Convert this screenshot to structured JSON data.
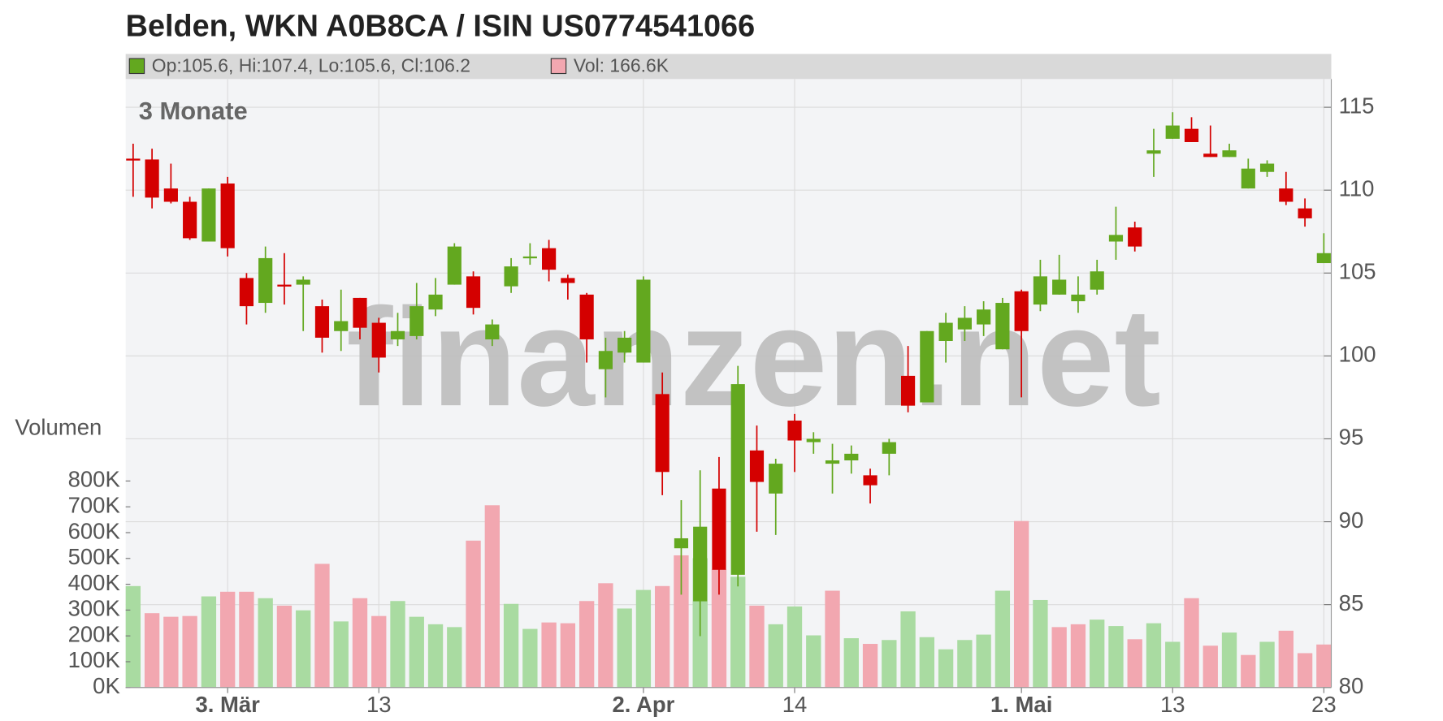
{
  "chart_data": [
    {
      "type": "candlestick",
      "title": "Belden, WKN A0B8CA / ISIN US0774541066",
      "legend": "Op:105.6, Hi:107.4, Lo:105.6, Cl:106.2",
      "period": "3 Monate",
      "watermark": "finanzen.net",
      "categories": [
        null,
        null,
        null,
        null,
        null,
        "3. Mär",
        null,
        null,
        null,
        null,
        null,
        null,
        null,
        "13",
        null,
        null,
        null,
        null,
        null,
        null,
        null,
        null,
        null,
        null,
        null,
        null,
        null,
        "2. Apr",
        null,
        null,
        null,
        null,
        null,
        null,
        null,
        "14",
        null,
        null,
        null,
        null,
        null,
        null,
        null,
        null,
        null,
        null,
        null,
        "1. Mai",
        null,
        null,
        null,
        null,
        null,
        null,
        null,
        "13",
        null,
        null,
        null,
        null,
        null,
        null,
        null,
        "23"
      ],
      "open": [
        111.9,
        111.85,
        110.1,
        109.3,
        106.9,
        110.4,
        104.7,
        103.2,
        104.3,
        104.3,
        103.0,
        101.5,
        103.5,
        102.0,
        101.0,
        101.2,
        102.8,
        104.3,
        104.8,
        101.0,
        104.2,
        105.9,
        106.5,
        104.7,
        103.7,
        99.2,
        100.2,
        99.6,
        97.7,
        88.4,
        85.2,
        92.0,
        86.8,
        94.3,
        91.7,
        96.1,
        94.8,
        93.5,
        93.7,
        92.8,
        94.1,
        98.8,
        97.2,
        100.9,
        101.6,
        101.9,
        100.4,
        103.9,
        103.1,
        103.7,
        103.3,
        104.0,
        106.9,
        107.75,
        112.2,
        113.1,
        113.7,
        112.2,
        112.0,
        110.1,
        111.1,
        110.1,
        108.9,
        105.6
      ],
      "high": [
        112.8,
        112.5,
        111.6,
        109.6,
        110.1,
        110.8,
        105.0,
        106.6,
        106.2,
        104.8,
        103.4,
        104.0,
        103.5,
        102.3,
        102.6,
        104.4,
        104.7,
        106.8,
        105.1,
        102.2,
        105.9,
        106.8,
        107.0,
        104.9,
        103.8,
        101.1,
        101.5,
        104.8,
        99.0,
        91.3,
        93.1,
        93.9,
        99.4,
        95.8,
        93.8,
        96.5,
        95.4,
        94.7,
        94.6,
        93.2,
        95.0,
        100.6,
        101.5,
        102.6,
        103.0,
        103.3,
        103.5,
        104.0,
        105.8,
        106.1,
        104.8,
        105.8,
        109.0,
        108.1,
        113.7,
        114.7,
        114.4,
        113.9,
        112.8,
        111.9,
        111.8,
        111.1,
        109.5,
        107.4
      ],
      "low": [
        109.6,
        108.9,
        109.2,
        107.0,
        106.9,
        106.0,
        101.9,
        102.6,
        103.1,
        101.5,
        100.2,
        100.3,
        101.0,
        99.0,
        100.6,
        101.0,
        102.4,
        104.3,
        102.5,
        100.6,
        103.8,
        105.5,
        104.5,
        103.4,
        99.6,
        97.5,
        99.6,
        99.6,
        91.6,
        85.6,
        83.1,
        85.6,
        86.1,
        89.4,
        89.2,
        93.0,
        94.1,
        91.7,
        92.9,
        91.1,
        92.8,
        96.6,
        97.2,
        99.6,
        100.9,
        101.2,
        100.4,
        97.5,
        102.7,
        103.7,
        102.6,
        103.7,
        105.8,
        106.3,
        110.8,
        113.1,
        112.9,
        112.0,
        112.0,
        110.1,
        110.8,
        109.1,
        107.8,
        105.6
      ],
      "close": [
        111.8,
        109.55,
        109.3,
        107.1,
        110.1,
        106.5,
        103.0,
        105.9,
        104.2,
        104.6,
        101.1,
        102.1,
        101.7,
        99.9,
        101.5,
        103.0,
        103.7,
        106.6,
        102.9,
        101.9,
        105.4,
        106.0,
        105.2,
        104.4,
        101.0,
        100.3,
        101.1,
        104.6,
        93.0,
        89.0,
        89.7,
        87.1,
        98.3,
        92.4,
        93.5,
        94.9,
        95.0,
        93.7,
        94.1,
        92.2,
        94.8,
        97.0,
        101.5,
        102.0,
        102.3,
        102.8,
        103.2,
        101.5,
        104.8,
        104.6,
        103.7,
        105.1,
        107.3,
        106.6,
        112.4,
        113.9,
        112.9,
        112.0,
        112.4,
        111.3,
        111.6,
        109.3,
        108.3,
        106.2
      ],
      "up_color": "#63a81f",
      "down_color": "#d40000",
      "ylim": [
        80,
        116.7
      ],
      "yticks": [
        80,
        85,
        90,
        95,
        100,
        105,
        110,
        115
      ],
      "grid": true
    },
    {
      "type": "bar",
      "ylabel": "Volumen",
      "legend": "Vol: 166.6K",
      "legend_color": "#f2a7b0",
      "values": [
        393000,
        288000,
        274000,
        277000,
        353000,
        371000,
        371000,
        346000,
        317000,
        299000,
        479000,
        256000,
        346000,
        277000,
        335000,
        274000,
        245000,
        234000,
        569000,
        706000,
        324000,
        227000,
        252000,
        249000,
        335000,
        404000,
        306000,
        378000,
        393000,
        512000,
        501000,
        458000,
        429000,
        317000,
        245000,
        314000,
        202000,
        375000,
        191000,
        169000,
        184000,
        295000,
        195000,
        148000,
        184000,
        205000,
        375000,
        645000,
        339000,
        234000,
        245000,
        263000,
        238000,
        187000,
        249000,
        177000,
        346000,
        162000,
        213000,
        126000,
        177000,
        220000,
        133000,
        166600
      ],
      "colors": [
        "#a9dba1",
        "#f2a7b0",
        "#f2a7b0",
        "#f2a7b0",
        "#a9dba1",
        "#f2a7b0",
        "#f2a7b0",
        "#a9dba1",
        "#f2a7b0",
        "#a9dba1",
        "#f2a7b0",
        "#a9dba1",
        "#f2a7b0",
        "#f2a7b0",
        "#a9dba1",
        "#a9dba1",
        "#a9dba1",
        "#a9dba1",
        "#f2a7b0",
        "#f2a7b0",
        "#a9dba1",
        "#a9dba1",
        "#f2a7b0",
        "#f2a7b0",
        "#f2a7b0",
        "#f2a7b0",
        "#a9dba1",
        "#a9dba1",
        "#f2a7b0",
        "#f2a7b0",
        "#a9dba1",
        "#f2a7b0",
        "#a9dba1",
        "#f2a7b0",
        "#a9dba1",
        "#a9dba1",
        "#a9dba1",
        "#f2a7b0",
        "#a9dba1",
        "#f2a7b0",
        "#a9dba1",
        "#a9dba1",
        "#a9dba1",
        "#a9dba1",
        "#a9dba1",
        "#a9dba1",
        "#a9dba1",
        "#f2a7b0",
        "#a9dba1",
        "#f2a7b0",
        "#f2a7b0",
        "#a9dba1",
        "#a9dba1",
        "#f2a7b0",
        "#a9dba1",
        "#a9dba1",
        "#f2a7b0",
        "#f2a7b0",
        "#a9dba1",
        "#f2a7b0",
        "#a9dba1",
        "#f2a7b0",
        "#f2a7b0",
        "#f2a7b0"
      ],
      "ylim": [
        0,
        2357000
      ],
      "yticks": [
        {
          "value": 0,
          "label": "0K"
        },
        {
          "value": 100000,
          "label": "100K"
        },
        {
          "value": 200000,
          "label": "200K"
        },
        {
          "value": 300000,
          "label": "300K"
        },
        {
          "value": 400000,
          "label": "400K"
        },
        {
          "value": 500000,
          "label": "500K"
        },
        {
          "value": 600000,
          "label": "600K"
        },
        {
          "value": 700000,
          "label": "700K"
        },
        {
          "value": 800000,
          "label": "800K"
        }
      ]
    }
  ]
}
